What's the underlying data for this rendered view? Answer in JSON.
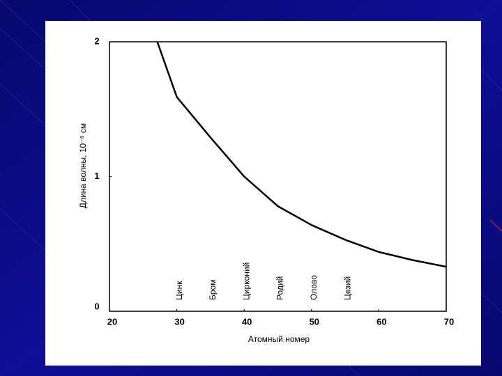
{
  "chart_data": {
    "type": "line",
    "x_label": "Атомный номер",
    "y_label": "Длина волны, 10⁻⁸ см",
    "x": [
      27.1,
      30,
      35,
      40,
      45,
      50,
      55,
      60,
      65,
      70
    ],
    "series": [
      {
        "color": "#000000",
        "values": [
          2,
          1.59,
          1.29,
          1.0,
          0.78,
          0.64,
          0.53,
          0.44,
          0.38,
          0.33
        ]
      }
    ],
    "xlim": [
      20,
      70
    ],
    "xticks": [
      20,
      30,
      40,
      50,
      60,
      70
    ],
    "ylim": [
      0,
      2
    ],
    "yticks": [
      0,
      1,
      2
    ],
    "annotations": [
      {
        "text": "Цинк",
        "x": 30
      },
      {
        "text": "Бром",
        "x": 35
      },
      {
        "text": "Цирконий",
        "x": 40
      },
      {
        "text": "Родий",
        "x": 45
      },
      {
        "text": "Олово",
        "x": 50
      },
      {
        "text": "Цезий",
        "x": 55
      }
    ]
  }
}
